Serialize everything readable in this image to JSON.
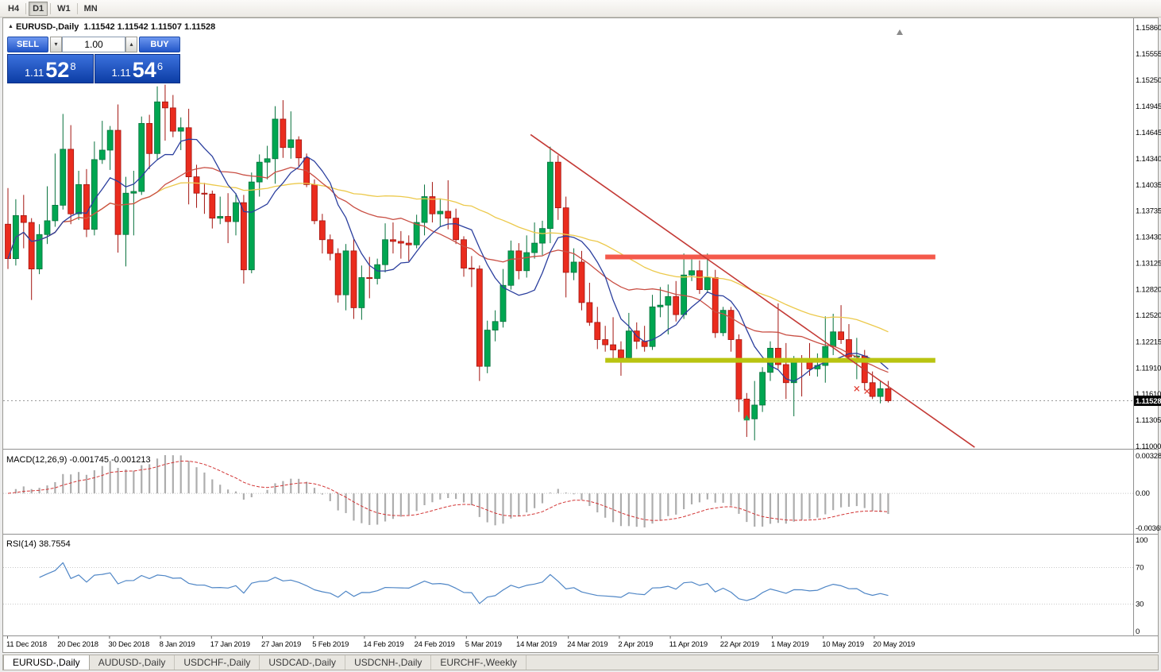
{
  "toolbar": {
    "timeframes": [
      {
        "label": "H4",
        "active": false
      },
      {
        "label": "D1",
        "active": true
      },
      {
        "label": "W1",
        "active": false
      },
      {
        "label": "MN",
        "active": false
      }
    ]
  },
  "chart_header": {
    "symbol_title": "EURUSD-,Daily",
    "ohlc": "1.11542 1.11542 1.11507 1.11528"
  },
  "trade_panel": {
    "sell_label": "SELL",
    "buy_label": "BUY",
    "volume": "1.00",
    "sell_price": {
      "prefix": "1.11",
      "big": "52",
      "sup": "8"
    },
    "buy_price": {
      "prefix": "1.11",
      "big": "54",
      "sup": "6"
    }
  },
  "price_axis_labels": [
    "1.15860",
    "1.15555",
    "1.15250",
    "1.14945",
    "1.14645",
    "1.14340",
    "1.14035",
    "1.13735",
    "1.13430",
    "1.13125",
    "1.12820",
    "1.12520",
    "1.12215",
    "1.11910",
    "1.11610",
    "1.11305",
    "1.11000"
  ],
  "current_price_tag": "1.11528",
  "indicators": {
    "macd": {
      "label": "MACD(12,26,9) -0.001745 -0.001213",
      "values": [
        "-0.001745",
        "-0.001213"
      ],
      "axis_labels": [
        "0.003287",
        "0.00",
        "-0.00365"
      ]
    },
    "rsi": {
      "label": "RSI(14) 38.7554",
      "value": "38.7554",
      "axis_labels": [
        "100",
        "70",
        "30",
        "0"
      ],
      "levels": [
        70,
        30
      ]
    }
  },
  "date_axis_labels": [
    "11 Dec 2018",
    "20 Dec 2018",
    "30 Dec 2018",
    "8 Jan 2019",
    "17 Jan 2019",
    "27 Jan 2019",
    "5 Feb 2019",
    "14 Feb 2019",
    "24 Feb 2019",
    "5 Mar 2019",
    "14 Mar 2019",
    "24 Mar 2019",
    "2 Apr 2019",
    "11 Apr 2019",
    "22 Apr 2019",
    "1 May 2019",
    "10 May 2019",
    "20 May 2019"
  ],
  "tabs": [
    {
      "label": "EURUSD-,Daily",
      "active": true
    },
    {
      "label": "AUDUSD-,Daily",
      "active": false
    },
    {
      "label": "USDCHF-,Daily",
      "active": false
    },
    {
      "label": "USDCAD-,Daily",
      "active": false
    },
    {
      "label": "USDCNH-,Daily",
      "active": false
    },
    {
      "label": "EURCHF-,Weekly",
      "active": false
    }
  ],
  "colors": {
    "bull_candle": "#00a651",
    "bull_stroke": "#06713c",
    "bear_candle": "#ea2c1e",
    "bear_stroke": "#a31510",
    "ma_fast": "#2b3f9e",
    "ma_mid": "#c94f44",
    "ma_slow": "#ecc94b",
    "macd_histogram": "#adadad",
    "macd_signal": "#d23535",
    "rsi_line": "#4f86c6",
    "resistance": "#f4594b",
    "support": "#b9c411",
    "trendline": "#c43a36",
    "panel_blue": "#1a54c8"
  },
  "chart_data": {
    "type": "candlestick",
    "symbol": "EURUSD-",
    "timeframe": "Daily",
    "ylim": [
      1.11,
      1.1586
    ],
    "indicator_params": {
      "macd_fast": 12,
      "macd_slow": 26,
      "macd_signal": 9,
      "rsi_period": 14
    },
    "moving_averages": [
      {
        "period": 8,
        "color": "#2b3f9e"
      },
      {
        "period": 20,
        "color": "#c94f44"
      },
      {
        "period": 45,
        "color": "#ecc94b"
      }
    ],
    "overlays": {
      "resistance_bar": {
        "price": 1.132,
        "start_index": 76,
        "end_index": 118,
        "color": "#f4594b",
        "thickness": 6
      },
      "support_bar": {
        "price": 1.12,
        "start_index": 76,
        "end_index": 118,
        "color": "#b9c411",
        "thickness": 6
      },
      "trendline": {
        "start_index": 66.5,
        "start_price": 1.1462,
        "end_index": 123,
        "end_price": 1.1099,
        "color": "#c43a36",
        "thickness": 1.6
      },
      "markers": [
        {
          "type": "up-arrow",
          "index": 94,
          "price": 1.1133,
          "color": "#18a558"
        },
        {
          "type": "cross",
          "index": 108,
          "price": 1.1167,
          "color": "#e03c31"
        },
        {
          "type": "cross",
          "index": 109.3,
          "price": 1.1164,
          "color": "#e03c31"
        }
      ]
    },
    "candles": [
      [
        "2018-12-11",
        1.1358,
        1.14,
        1.1306,
        1.1318
      ],
      [
        "2018-12-12",
        1.1318,
        1.1387,
        1.131,
        1.1368
      ],
      [
        "2018-12-13",
        1.1368,
        1.1392,
        1.133,
        1.136
      ],
      [
        "2018-12-14",
        1.136,
        1.1365,
        1.127,
        1.1306
      ],
      [
        "2018-12-17",
        1.1306,
        1.1358,
        1.13,
        1.1346
      ],
      [
        "2018-12-18",
        1.1346,
        1.1402,
        1.1335,
        1.1362
      ],
      [
        "2018-12-19",
        1.1362,
        1.144,
        1.1355,
        1.138
      ],
      [
        "2018-12-20",
        1.138,
        1.1486,
        1.1375,
        1.1445
      ],
      [
        "2018-12-21",
        1.1445,
        1.1473,
        1.1358,
        1.137
      ],
      [
        "2018-12-24",
        1.137,
        1.142,
        1.1363,
        1.1404
      ],
      [
        "2018-12-26",
        1.1404,
        1.1422,
        1.1343,
        1.1352
      ],
      [
        "2018-12-27",
        1.1352,
        1.1454,
        1.1345,
        1.1433
      ],
      [
        "2018-12-28",
        1.1433,
        1.1478,
        1.1428,
        1.1444
      ],
      [
        "2018-12-31",
        1.1444,
        1.1472,
        1.1421,
        1.1467
      ],
      [
        "2019-01-02",
        1.1467,
        1.1497,
        1.1325,
        1.1346
      ],
      [
        "2019-01-03",
        1.1346,
        1.1413,
        1.1309,
        1.1394
      ],
      [
        "2019-01-04",
        1.1394,
        1.142,
        1.1345,
        1.1396
      ],
      [
        "2019-01-07",
        1.1396,
        1.1483,
        1.1392,
        1.1475
      ],
      [
        "2019-01-08",
        1.1475,
        1.1485,
        1.1422,
        1.144
      ],
      [
        "2019-01-09",
        1.144,
        1.1518,
        1.1433,
        1.15
      ],
      [
        "2019-01-10",
        1.15,
        1.152,
        1.1455,
        1.1493
      ],
      [
        "2019-01-11",
        1.1493,
        1.1508,
        1.1459,
        1.1466
      ],
      [
        "2019-01-14",
        1.1466,
        1.1482,
        1.1444,
        1.147
      ],
      [
        "2019-01-15",
        1.147,
        1.1492,
        1.1381,
        1.1413
      ],
      [
        "2019-01-16",
        1.1413,
        1.1427,
        1.1377,
        1.1394
      ],
      [
        "2019-01-17",
        1.1394,
        1.1406,
        1.137,
        1.1393
      ],
      [
        "2019-01-18",
        1.1393,
        1.1397,
        1.1353,
        1.1365
      ],
      [
        "2019-01-21",
        1.1365,
        1.139,
        1.1358,
        1.1367
      ],
      [
        "2019-01-22",
        1.1367,
        1.1394,
        1.1336,
        1.1361
      ],
      [
        "2019-01-23",
        1.1361,
        1.1394,
        1.1345,
        1.1383
      ],
      [
        "2019-01-24",
        1.1383,
        1.1392,
        1.1289,
        1.1305
      ],
      [
        "2019-01-25",
        1.1305,
        1.1418,
        1.1301,
        1.1407
      ],
      [
        "2019-01-28",
        1.1407,
        1.1439,
        1.139,
        1.143
      ],
      [
        "2019-01-29",
        1.143,
        1.1449,
        1.141,
        1.1434
      ],
      [
        "2019-01-30",
        1.1434,
        1.1495,
        1.1405,
        1.148
      ],
      [
        "2019-01-31",
        1.148,
        1.1502,
        1.1435,
        1.1447
      ],
      [
        "2019-02-01",
        1.1447,
        1.1489,
        1.1434,
        1.1456
      ],
      [
        "2019-02-04",
        1.1456,
        1.146,
        1.1425,
        1.1435
      ],
      [
        "2019-02-05",
        1.1435,
        1.144,
        1.1401,
        1.1404
      ],
      [
        "2019-02-06",
        1.1404,
        1.141,
        1.1358,
        1.1362
      ],
      [
        "2019-02-07",
        1.1362,
        1.137,
        1.1324,
        1.134
      ],
      [
        "2019-02-08",
        1.134,
        1.1346,
        1.1316,
        1.1324
      ],
      [
        "2019-02-11",
        1.1324,
        1.133,
        1.1267,
        1.1276
      ],
      [
        "2019-02-12",
        1.1276,
        1.1335,
        1.1258,
        1.1327
      ],
      [
        "2019-02-13",
        1.1327,
        1.1341,
        1.1248,
        1.1261
      ],
      [
        "2019-02-14",
        1.1261,
        1.131,
        1.1247,
        1.1296
      ],
      [
        "2019-02-15",
        1.1296,
        1.132,
        1.1272,
        1.1295
      ],
      [
        "2019-02-18",
        1.1295,
        1.1318,
        1.1288,
        1.1311
      ],
      [
        "2019-02-19",
        1.1311,
        1.1359,
        1.1302,
        1.134
      ],
      [
        "2019-02-20",
        1.134,
        1.136,
        1.1324,
        1.1338
      ],
      [
        "2019-02-21",
        1.1338,
        1.135,
        1.1318,
        1.1336
      ],
      [
        "2019-02-22",
        1.1336,
        1.1345,
        1.1315,
        1.1334
      ],
      [
        "2019-02-25",
        1.1334,
        1.1369,
        1.133,
        1.136
      ],
      [
        "2019-02-26",
        1.136,
        1.1404,
        1.1345,
        1.139
      ],
      [
        "2019-02-27",
        1.139,
        1.1407,
        1.136,
        1.137
      ],
      [
        "2019-02-28",
        1.137,
        1.1388,
        1.1355,
        1.1373
      ],
      [
        "2019-03-01",
        1.1373,
        1.1409,
        1.1352,
        1.1365
      ],
      [
        "2019-03-04",
        1.1365,
        1.1376,
        1.1335,
        1.134
      ],
      [
        "2019-03-05",
        1.134,
        1.1344,
        1.1297,
        1.1307
      ],
      [
        "2019-03-06",
        1.1307,
        1.1321,
        1.1285,
        1.1306
      ],
      [
        "2019-03-07",
        1.1306,
        1.131,
        1.1176,
        1.1193
      ],
      [
        "2019-03-08",
        1.1193,
        1.1246,
        1.1185,
        1.1235
      ],
      [
        "2019-03-11",
        1.1235,
        1.1258,
        1.1222,
        1.1245
      ],
      [
        "2019-03-12",
        1.1245,
        1.1306,
        1.1238,
        1.1287
      ],
      [
        "2019-03-13",
        1.1287,
        1.1339,
        1.1282,
        1.1327
      ],
      [
        "2019-03-14",
        1.1327,
        1.1336,
        1.1294,
        1.1304
      ],
      [
        "2019-03-15",
        1.1304,
        1.1345,
        1.1296,
        1.1325
      ],
      [
        "2019-03-18",
        1.1325,
        1.136,
        1.1318,
        1.1336
      ],
      [
        "2019-03-19",
        1.1336,
        1.1362,
        1.1322,
        1.1353
      ],
      [
        "2019-03-20",
        1.1353,
        1.1448,
        1.1336,
        1.143
      ],
      [
        "2019-03-21",
        1.143,
        1.1438,
        1.1363,
        1.1377
      ],
      [
        "2019-03-22",
        1.1377,
        1.139,
        1.1273,
        1.1302
      ],
      [
        "2019-03-25",
        1.1302,
        1.133,
        1.1293,
        1.1314
      ],
      [
        "2019-03-26",
        1.1314,
        1.1327,
        1.1258,
        1.1267
      ],
      [
        "2019-03-27",
        1.1267,
        1.129,
        1.124,
        1.1244
      ],
      [
        "2019-03-28",
        1.1244,
        1.1262,
        1.1213,
        1.1224
      ],
      [
        "2019-03-29",
        1.1224,
        1.124,
        1.121,
        1.1218
      ],
      [
        "2019-04-01",
        1.1218,
        1.125,
        1.1198,
        1.1212
      ],
      [
        "2019-04-02",
        1.1212,
        1.1222,
        1.1182,
        1.1203
      ],
      [
        "2019-04-03",
        1.1203,
        1.1255,
        1.12,
        1.1234
      ],
      [
        "2019-04-04",
        1.1234,
        1.1244,
        1.1213,
        1.1222
      ],
      [
        "2019-04-05",
        1.1222,
        1.124,
        1.121,
        1.1216
      ],
      [
        "2019-04-08",
        1.1216,
        1.1276,
        1.1212,
        1.1262
      ],
      [
        "2019-04-09",
        1.1262,
        1.1285,
        1.125,
        1.1264
      ],
      [
        "2019-04-10",
        1.1264,
        1.1288,
        1.123,
        1.1274
      ],
      [
        "2019-04-11",
        1.1274,
        1.1292,
        1.1245,
        1.1253
      ],
      [
        "2019-04-12",
        1.1253,
        1.1324,
        1.1248,
        1.1299
      ],
      [
        "2019-04-15",
        1.1299,
        1.132,
        1.1292,
        1.1304
      ],
      [
        "2019-04-16",
        1.1304,
        1.1316,
        1.1277,
        1.1282
      ],
      [
        "2019-04-17",
        1.1282,
        1.1324,
        1.1278,
        1.1296
      ],
      [
        "2019-04-18",
        1.1296,
        1.1305,
        1.1226,
        1.1232
      ],
      [
        "2019-04-22",
        1.1232,
        1.1262,
        1.1228,
        1.1258
      ],
      [
        "2019-04-23",
        1.1258,
        1.1262,
        1.121,
        1.1224
      ],
      [
        "2019-04-24",
        1.1224,
        1.123,
        1.114,
        1.1155
      ],
      [
        "2019-04-25",
        1.1155,
        1.1162,
        1.1111,
        1.1132
      ],
      [
        "2019-04-26",
        1.1132,
        1.1176,
        1.1107,
        1.1148
      ],
      [
        "2019-04-29",
        1.1148,
        1.1192,
        1.114,
        1.1186
      ],
      [
        "2019-04-30",
        1.1186,
        1.1222,
        1.1176,
        1.1214
      ],
      [
        "2019-05-01",
        1.1214,
        1.1266,
        1.119,
        1.1195
      ],
      [
        "2019-05-02",
        1.1195,
        1.122,
        1.1155,
        1.1174
      ],
      [
        "2019-05-03",
        1.1174,
        1.1205,
        1.1135,
        1.12
      ],
      [
        "2019-05-06",
        1.12,
        1.1206,
        1.1158,
        1.1199
      ],
      [
        "2019-05-07",
        1.1199,
        1.122,
        1.1182,
        1.119
      ],
      [
        "2019-05-08",
        1.119,
        1.1208,
        1.1181,
        1.1194
      ],
      [
        "2019-05-09",
        1.1194,
        1.1251,
        1.1174,
        1.1216
      ],
      [
        "2019-05-10",
        1.1216,
        1.1254,
        1.1206,
        1.1233
      ],
      [
        "2019-05-13",
        1.1233,
        1.1264,
        1.1219,
        1.1224
      ],
      [
        "2019-05-14",
        1.1224,
        1.1242,
        1.12,
        1.1204
      ],
      [
        "2019-05-15",
        1.1204,
        1.1226,
        1.1178,
        1.1205
      ],
      [
        "2019-05-16",
        1.1205,
        1.1212,
        1.1165,
        1.1174
      ],
      [
        "2019-05-17",
        1.1174,
        1.1187,
        1.1155,
        1.1158
      ],
      [
        "2019-05-20",
        1.1158,
        1.1176,
        1.115,
        1.1167
      ],
      [
        "2019-05-21",
        1.1167,
        1.1176,
        1.1151,
        1.1153
      ]
    ]
  }
}
